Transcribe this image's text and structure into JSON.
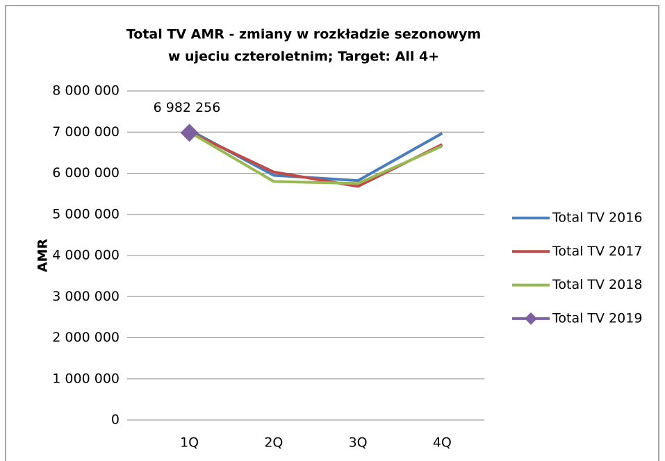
{
  "chart_data": {
    "type": "line",
    "title": [
      "Total TV AMR - zmiany w rozkładzie sezonowym",
      "w ujeciu czteroletnim; Target: All 4+"
    ],
    "y_label": "AMR",
    "categories": [
      "1Q",
      "2Q",
      "3Q",
      "4Q"
    ],
    "series": [
      {
        "name": "Total TV 2016",
        "color": "#4a7ebb",
        "values": [
          7050000,
          5950000,
          5820000,
          6970000
        ]
      },
      {
        "name": "Total TV 2017",
        "color": "#be4b48",
        "values": [
          7000000,
          6030000,
          5680000,
          6700000
        ]
      },
      {
        "name": "Total TV 2018",
        "color": "#98b954",
        "values": [
          7000000,
          5800000,
          5750000,
          6660000
        ]
      },
      {
        "name": "Total TV 2019",
        "color": "#7d60a0",
        "marker": "diamond",
        "values": [
          6982256,
          null,
          null,
          null
        ],
        "value_labels": [
          "6 982 256",
          null,
          null,
          null
        ]
      }
    ],
    "ylim": [
      0,
      8000000
    ],
    "yticks": [
      0,
      {
        "value": 1000000,
        "label": "1 000 000"
      },
      {
        "value": 2000000,
        "label": "2 000 000"
      },
      {
        "value": 3000000,
        "label": "3 000 000"
      },
      {
        "value": 4000000,
        "label": "4 000 000"
      },
      {
        "value": 5000000,
        "label": "5 000 000"
      },
      {
        "value": 6000000,
        "label": "6 000 000"
      },
      {
        "value": 7000000,
        "label": "7 000 000"
      },
      {
        "value": 8000000,
        "label": "8 000 000"
      }
    ],
    "grid": true,
    "legend": "right"
  }
}
